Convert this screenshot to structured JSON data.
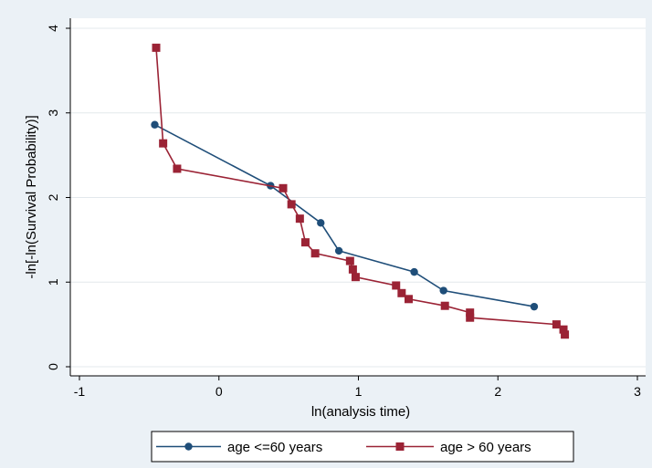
{
  "chart_data": {
    "type": "line",
    "xlabel": "ln(analysis time)",
    "ylabel": "-ln[-ln(Survival Probability)]",
    "xlim": [
      -1,
      3
    ],
    "ylim": [
      0,
      4
    ],
    "xticks": [
      -1,
      0,
      1,
      2,
      3
    ],
    "yticks": [
      0,
      1,
      2,
      3,
      4
    ],
    "grid": "horizontal",
    "legend_position": "bottom",
    "series": [
      {
        "name": "age <=60 years",
        "color": "#1f4e79",
        "marker": "circle",
        "x": [
          -0.46,
          0.37,
          0.73,
          0.86,
          1.4,
          1.61,
          2.26
        ],
        "y": [
          2.86,
          2.14,
          1.7,
          1.37,
          1.12,
          0.9,
          0.71
        ]
      },
      {
        "name": "age > 60 years",
        "color": "#9b2335",
        "marker": "square",
        "x": [
          -0.45,
          -0.4,
          -0.3,
          0.46,
          0.52,
          0.58,
          0.62,
          0.69,
          0.94,
          0.96,
          0.98,
          1.27,
          1.31,
          1.36,
          1.62,
          1.8,
          1.8,
          2.42,
          2.47,
          2.48
        ],
        "y": [
          3.77,
          2.64,
          2.34,
          2.11,
          1.92,
          1.75,
          1.47,
          1.34,
          1.25,
          1.15,
          1.06,
          0.96,
          0.87,
          0.8,
          0.72,
          0.64,
          0.58,
          0.5,
          0.44,
          0.38
        ]
      }
    ]
  }
}
